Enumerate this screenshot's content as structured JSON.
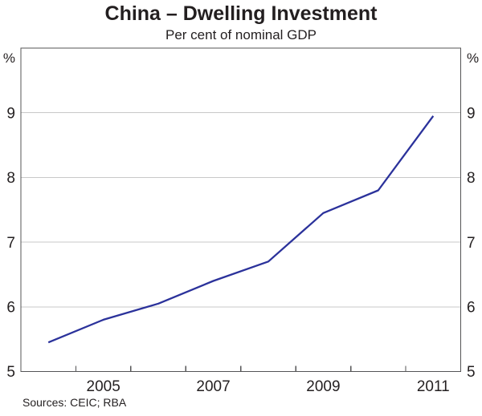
{
  "page": {
    "title": "China – Dwelling Investment",
    "subtitle": "Per cent of nominal GDP"
  },
  "footer": {
    "sources": "Sources: CEIC; RBA"
  },
  "colors": {
    "line": "#2b329b",
    "frame": "#545456",
    "grid": "#c8c8c8",
    "text": "#231f20"
  },
  "chart_data": {
    "type": "line",
    "title": "China – Dwelling Investment",
    "subtitle": "Per cent of nominal GDP",
    "unit_label_left": "%",
    "unit_label_right": "%",
    "x": [
      2004,
      2005,
      2006,
      2007,
      2008,
      2009,
      2010,
      2011
    ],
    "series": [
      {
        "name": "China dwelling investment, per cent of nominal GDP (annual)",
        "values": [
          5.45,
          5.8,
          6.05,
          6.4,
          6.7,
          7.45,
          7.8,
          8.95
        ]
      }
    ],
    "point_x_offset": 0.5,
    "xlim": [
      2004,
      2012
    ],
    "ylim": [
      5,
      10
    ],
    "yticks_left": [
      5,
      6,
      7,
      8,
      9
    ],
    "yticks_right": [
      5,
      6,
      7,
      8,
      9
    ],
    "gridline_values": [
      6,
      7,
      8,
      9
    ],
    "xticks": [
      2005,
      2006,
      2007,
      2008,
      2009,
      2010,
      2011
    ],
    "xtick_labels": [
      "2005",
      "2007",
      "2009",
      "2011"
    ],
    "xtick_label_positions": [
      2005.5,
      2007.5,
      2009.5,
      2011.5
    ],
    "grid": true,
    "legend": "none"
  }
}
